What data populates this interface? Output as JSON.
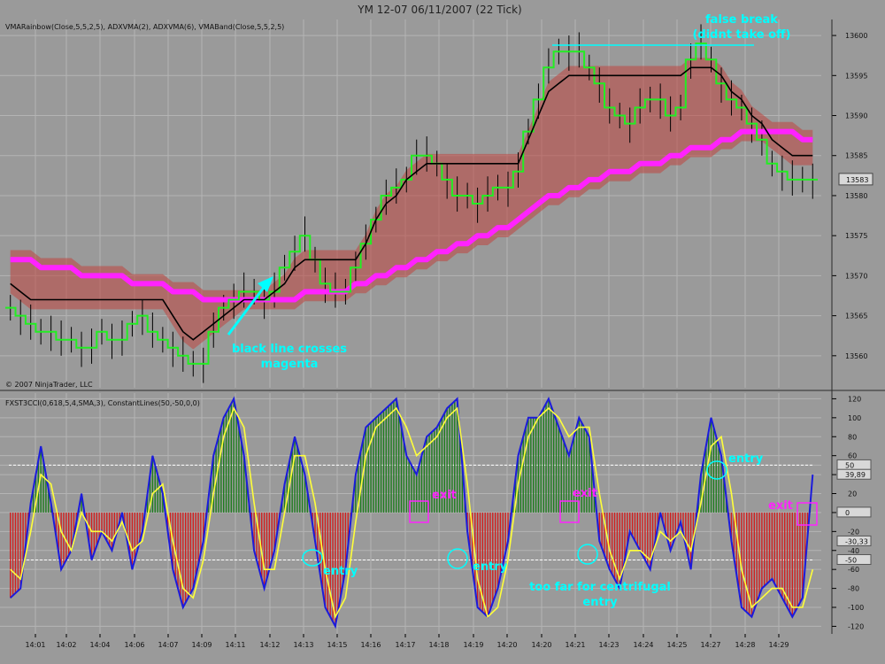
{
  "window": {
    "title": "YM 12-07  06/11/2007  (22 Tick)"
  },
  "price_panel": {
    "indicator_label": "VMARainbow(Close,5,5,2,5), ADXVMA(2), ADXVMA(6), VMABand(Close,5,5,2,5)",
    "copyright": "© 2007 NinjaTrader, LLC",
    "current_price_tag": "13583"
  },
  "cci_panel": {
    "indicator_label": "FXST3CCI(0,618,5,4,SMA,3), ConstantLines(50,-50,0,0)",
    "value_tags": [
      "50",
      "39,89",
      "0",
      "-30,33",
      "-50"
    ]
  },
  "annotations": {
    "false_break_line1": "false break",
    "false_break_line2": "(didnt take off)",
    "cross_line1": "black line crosses",
    "cross_line2": "magenta",
    "exit": "exit",
    "entry": "entry",
    "centrifugal_line1": "too far for centrifugal",
    "centrifugal_line2": "entry"
  },
  "colors": {
    "background": "#9a9a9a",
    "grid": "#b4b4b4",
    "band": "#c0463f",
    "magenta": "#ff22ff",
    "green_line": "#22ee22",
    "black_line": "#000000",
    "cyan": "#00ffff",
    "cci_blue": "#1b1bdc",
    "cci_yellow": "#ffff3a",
    "hist_pos": "#1d7d1d",
    "hist_neg": "#d21e1e"
  },
  "chart_data": [
    {
      "type": "line",
      "title": "YM 12-07  06/11/2007  (22 Tick)",
      "x_ticks": [
        "14:01",
        "14:02",
        "14:04",
        "14:06",
        "14:07",
        "14:09",
        "14:11",
        "14:12",
        "14:13",
        "14:15",
        "14:16",
        "14:17",
        "14:18",
        "14:19",
        "14:20",
        "14:20",
        "14:21",
        "14:23",
        "14:24",
        "14:25",
        "14:27",
        "14:28",
        "14:29"
      ],
      "y_ticks": [
        13560,
        13565,
        13570,
        13575,
        13580,
        13585,
        13590,
        13595,
        13600
      ],
      "ylim": [
        13556,
        13602
      ],
      "grid": true,
      "series": [
        {
          "key": "close",
          "values": [
            13566,
            13565,
            13564,
            13563,
            13563,
            13562,
            13562,
            13561,
            13561,
            13563,
            13562,
            13562,
            13564,
            13565,
            13563,
            13562,
            13561,
            13560,
            13559,
            13559,
            13563,
            13566,
            13567,
            13568,
            13568,
            13567,
            13568,
            13571,
            13573,
            13575,
            13572,
            13569,
            13568,
            13568,
            13571,
            13574,
            13577,
            13580,
            13581,
            13582,
            13585,
            13585,
            13584,
            13582,
            13580,
            13580,
            13579,
            13580,
            13581,
            13581,
            13583,
            13588,
            13592,
            13596,
            13598,
            13598,
            13598,
            13596,
            13594,
            13591,
            13590,
            13589,
            13591,
            13592,
            13592,
            13590,
            13591,
            13597,
            13599,
            13597,
            13594,
            13592,
            13591,
            13589,
            13587,
            13584,
            13583,
            13582,
            13582,
            13582
          ]
        },
        {
          "key": "adxvma_fast_green",
          "values": [
            13566,
            13565,
            13564,
            13563,
            13563,
            13562,
            13562,
            13561,
            13561,
            13563,
            13562,
            13562,
            13564,
            13565,
            13563,
            13562,
            13561,
            13560,
            13559,
            13559,
            13563,
            13566,
            13567,
            13568,
            13568,
            13567,
            13568,
            13571,
            13573,
            13575,
            13572,
            13569,
            13568,
            13568,
            13571,
            13574,
            13577,
            13580,
            13581,
            13582,
            13585,
            13585,
            13584,
            13582,
            13580,
            13580,
            13579,
            13580,
            13581,
            13581,
            13583,
            13588,
            13592,
            13596,
            13598,
            13598,
            13598,
            13596,
            13594,
            13591,
            13590,
            13589,
            13591,
            13592,
            13592,
            13590,
            13591,
            13597,
            13599,
            13597,
            13594,
            13592,
            13591,
            13589,
            13587,
            13584,
            13583,
            13582,
            13582,
            13582
          ]
        },
        {
          "key": "adxvma_slow_black",
          "values": [
            13569,
            13568,
            13567,
            13567,
            13567,
            13567,
            13567,
            13567,
            13567,
            13567,
            13567,
            13567,
            13567,
            13567,
            13567,
            13567,
            13565,
            13563,
            13562,
            13563,
            13564,
            13565,
            13566,
            13567,
            13567,
            13567,
            13568,
            13569,
            13571,
            13572,
            13572,
            13572,
            13572,
            13572,
            13572,
            13574,
            13577,
            13579,
            13580,
            13582,
            13583,
            13584,
            13584,
            13584,
            13584,
            13584,
            13584,
            13584,
            13584,
            13584,
            13584,
            13587,
            13590,
            13593,
            13594,
            13595,
            13595,
            13595,
            13595,
            13595,
            13595,
            13595,
            13595,
            13595,
            13595,
            13595,
            13595,
            13596,
            13596,
            13596,
            13595,
            13593,
            13592,
            13590,
            13589,
            13587,
            13586,
            13585,
            13585,
            13585
          ]
        },
        {
          "key": "vma_band_magenta",
          "values": [
            13572,
            13572,
            13572,
            13571,
            13571,
            13571,
            13571,
            13570,
            13570,
            13570,
            13570,
            13570,
            13569,
            13569,
            13569,
            13569,
            13568,
            13568,
            13568,
            13567,
            13567,
            13567,
            13567,
            13567,
            13567,
            13567,
            13567,
            13567,
            13567,
            13568,
            13568,
            13568,
            13568,
            13568,
            13569,
            13569,
            13570,
            13570,
            13571,
            13571,
            13572,
            13572,
            13573,
            13573,
            13574,
            13574,
            13575,
            13575,
            13576,
            13576,
            13577,
            13578,
            13579,
            13580,
            13580,
            13581,
            13581,
            13582,
            13582,
            13583,
            13583,
            13583,
            13584,
            13584,
            13584,
            13585,
            13585,
            13586,
            13586,
            13586,
            13587,
            13587,
            13588,
            13588,
            13588,
            13588,
            13588,
            13588,
            13587,
            13587
          ]
        }
      ]
    },
    {
      "type": "line",
      "title": "FXST3CCI(0,618,5,4,SMA,3), ConstantLines(50,-50,0,0)",
      "y_ticks": [
        -120,
        -100,
        -80,
        -60,
        -50,
        -40,
        -20,
        0,
        20,
        40,
        50,
        60,
        80,
        100,
        120
      ],
      "ylim": [
        -128,
        126
      ],
      "grid": true,
      "series": [
        {
          "key": "cci_blue",
          "values": [
            -90,
            -80,
            10,
            70,
            10,
            -60,
            -40,
            20,
            -50,
            -20,
            -40,
            0,
            -60,
            -20,
            60,
            20,
            -60,
            -100,
            -80,
            -30,
            60,
            100,
            120,
            60,
            -40,
            -80,
            -40,
            30,
            80,
            40,
            -30,
            -100,
            -120,
            -60,
            40,
            90,
            100,
            110,
            120,
            60,
            40,
            80,
            90,
            110,
            120,
            -20,
            -100,
            -110,
            -80,
            -30,
            60,
            100,
            100,
            120,
            90,
            60,
            100,
            80,
            -30,
            -60,
            -80,
            -20,
            -40,
            -60,
            0,
            -40,
            -10,
            -60,
            40,
            100,
            60,
            -30,
            -100,
            -110,
            -80,
            -70,
            -90,
            -110,
            -90,
            40
          ]
        },
        {
          "key": "signal_yellow",
          "values": [
            -60,
            -70,
            -20,
            40,
            30,
            -20,
            -40,
            0,
            -20,
            -20,
            -30,
            -10,
            -40,
            -30,
            20,
            30,
            -30,
            -80,
            -90,
            -50,
            20,
            80,
            110,
            90,
            10,
            -60,
            -60,
            0,
            60,
            60,
            10,
            -60,
            -110,
            -90,
            -10,
            60,
            90,
            100,
            110,
            90,
            60,
            70,
            80,
            100,
            110,
            30,
            -70,
            -110,
            -100,
            -50,
            30,
            80,
            100,
            110,
            100,
            80,
            90,
            90,
            20,
            -40,
            -70,
            -40,
            -40,
            -50,
            -20,
            -30,
            -20,
            -40,
            10,
            70,
            80,
            20,
            -60,
            -100,
            -90,
            -80,
            -80,
            -100,
            -100,
            -60
          ]
        }
      ]
    }
  ]
}
